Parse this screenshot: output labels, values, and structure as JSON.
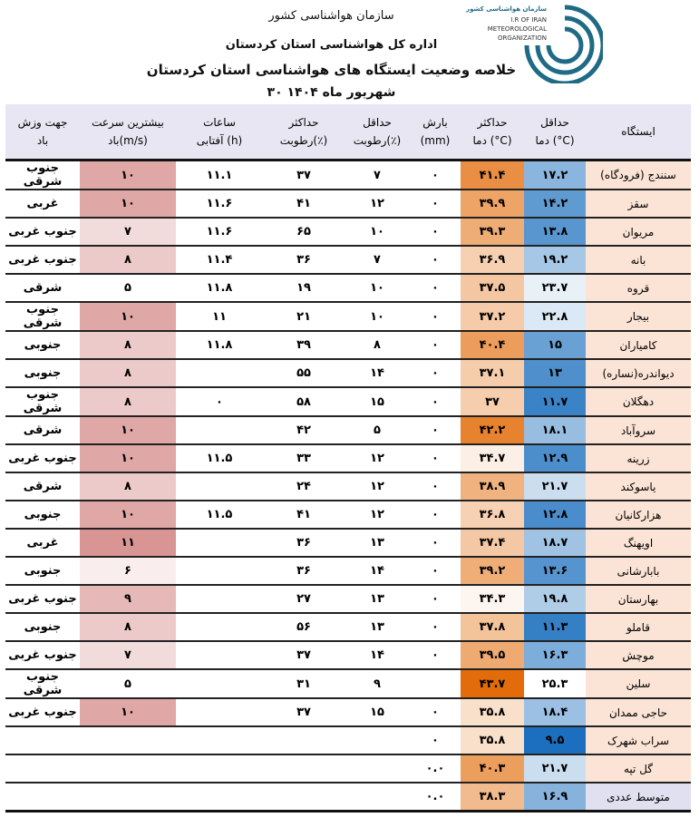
{
  "header": {
    "org": "سازمان هواشناسی کشور",
    "office": "اداره کل هواشناسی استان کردستان",
    "title": "خلاصه وضعیت ایستگاه های هواشناسی استان کردستان",
    "date": "۳۰ شهریور ماه ۱۴۰۴",
    "logo_text": [
      "سازمان هواشناسی کشور",
      "I.R OF IRAN",
      "METEOROLOGICAL",
      "ORGANIZATION"
    ]
  },
  "colors": {
    "logo": "#1f6a85",
    "header_bg": "#e8e6f2",
    "station_bg": "#fbe4d5",
    "hot": "#e36c0a",
    "cold": "#1b6fbe",
    "wind": "#d99594"
  },
  "columns": [
    {
      "l1": "جهت وزش",
      "l2": "باد"
    },
    {
      "l1": "بیشترین سرعت",
      "l2": "باد(m/s)"
    },
    {
      "l1": "ساعات",
      "l2": "آفتابی (h)"
    },
    {
      "l1": "حداکثر",
      "l2": "رطوبت(٪)"
    },
    {
      "l1": "حداقل",
      "l2": "رطوبت(٪)"
    },
    {
      "l1": "بارش",
      "l2": "(mm)"
    },
    {
      "l1": "حداکثر",
      "l2": "دما (°C)"
    },
    {
      "l1": "حداقل",
      "l2": "دما (°C)"
    },
    {
      "l1": "ایستگاه",
      "l2": ""
    }
  ],
  "rows": [
    {
      "station": "سنندج (فرودگاه)",
      "tmin": "۱۷.۲",
      "tmax": "۴۱.۴",
      "precip": "۰",
      "rhmin": "۷",
      "rhmax": "۳۷",
      "sun": "۱۱.۱",
      "wind": "۱۰",
      "dir": "جنوب شرقی",
      "v": [
        17.2,
        41.4,
        10
      ]
    },
    {
      "station": "سقز",
      "tmin": "۱۴.۲",
      "tmax": "۳۹.۹",
      "precip": "۰",
      "rhmin": "۱۲",
      "rhmax": "۴۱",
      "sun": "۱۱.۶",
      "wind": "۱۰",
      "dir": "غربی",
      "v": [
        14.2,
        39.9,
        10
      ]
    },
    {
      "station": "مریوان",
      "tmin": "۱۳.۸",
      "tmax": "۳۹.۳",
      "precip": "۰",
      "rhmin": "۱۰",
      "rhmax": "۶۵",
      "sun": "۱۱.۶",
      "wind": "۷",
      "dir": "جنوب غربی",
      "v": [
        13.8,
        39.3,
        7
      ]
    },
    {
      "station": "بانه",
      "tmin": "۱۹.۲",
      "tmax": "۳۶.۹",
      "precip": "۰",
      "rhmin": "۷",
      "rhmax": "۳۶",
      "sun": "۱۱.۴",
      "wind": "۸",
      "dir": "جنوب غربی",
      "v": [
        19.2,
        36.9,
        8
      ]
    },
    {
      "station": "قروه",
      "tmin": "۲۳.۷",
      "tmax": "۳۷.۵",
      "precip": "۰",
      "rhmin": "۱۰",
      "rhmax": "۱۹",
      "sun": "۱۱.۸",
      "wind": "۵",
      "dir": "شرقی",
      "v": [
        23.7,
        37.5,
        5
      ]
    },
    {
      "station": "بیجار",
      "tmin": "۲۲.۸",
      "tmax": "۳۷.۲",
      "precip": "۰",
      "rhmin": "۱۰",
      "rhmax": "۲۱",
      "sun": "۱۱",
      "wind": "۱۰",
      "dir": "جنوب شرقی",
      "v": [
        22.8,
        37.2,
        10
      ]
    },
    {
      "station": "کامیاران",
      "tmin": "۱۵",
      "tmax": "۴۰.۴",
      "precip": "۰",
      "rhmin": "۸",
      "rhmax": "۳۹",
      "sun": "۱۱.۸",
      "wind": "۸",
      "dir": "جنوبی",
      "v": [
        15,
        40.4,
        8
      ]
    },
    {
      "station": "دیواندره(نساره)",
      "tmin": "۱۳",
      "tmax": "۳۷.۱",
      "precip": "۰",
      "rhmin": "۱۴",
      "rhmax": "۵۵",
      "sun": "",
      "wind": "۸",
      "dir": "جنوبی",
      "v": [
        13,
        37.1,
        8
      ]
    },
    {
      "station": "دهگلان",
      "tmin": "۱۱.۷",
      "tmax": "۳۷",
      "precip": "۰",
      "rhmin": "۱۵",
      "rhmax": "۵۸",
      "sun": "۰",
      "wind": "۸",
      "dir": "جنوب شرقی",
      "v": [
        11.7,
        37,
        8
      ]
    },
    {
      "station": "سروآباد",
      "tmin": "۱۸.۱",
      "tmax": "۴۲.۲",
      "precip": "۰",
      "rhmin": "۵",
      "rhmax": "۴۲",
      "sun": "",
      "wind": "۱۰",
      "dir": "شرقی",
      "v": [
        18.1,
        42.2,
        10
      ]
    },
    {
      "station": "زرینه",
      "tmin": "۱۲.۹",
      "tmax": "۳۴.۷",
      "precip": "۰",
      "rhmin": "۱۲",
      "rhmax": "۳۳",
      "sun": "۱۱.۵",
      "wind": "۱۰",
      "dir": "جنوب غربی",
      "v": [
        12.9,
        34.7,
        10
      ]
    },
    {
      "station": "یاسوکند",
      "tmin": "۲۱.۷",
      "tmax": "۳۸.۹",
      "precip": "۰",
      "rhmin": "۱۲",
      "rhmax": "۲۴",
      "sun": "",
      "wind": "۸",
      "dir": "شرقی",
      "v": [
        21.7,
        38.9,
        8
      ]
    },
    {
      "station": "هزارکانیان",
      "tmin": "۱۲.۸",
      "tmax": "۳۶.۸",
      "precip": "۰",
      "rhmin": "۱۲",
      "rhmax": "۴۱",
      "sun": "۱۱.۵",
      "wind": "۱۰",
      "dir": "جنوبی",
      "v": [
        12.8,
        36.8,
        10
      ]
    },
    {
      "station": "اویهنگ",
      "tmin": "۱۸.۷",
      "tmax": "۳۷.۴",
      "precip": "۰",
      "rhmin": "۱۳",
      "rhmax": "۳۶",
      "sun": "",
      "wind": "۱۱",
      "dir": "غربی",
      "v": [
        18.7,
        37.4,
        11
      ]
    },
    {
      "station": "بابارشانی",
      "tmin": "۱۳.۶",
      "tmax": "۳۹.۲",
      "precip": "۰",
      "rhmin": "۱۴",
      "rhmax": "۳۶",
      "sun": "",
      "wind": "۶",
      "dir": "جنوبی",
      "v": [
        13.6,
        39.2,
        6
      ]
    },
    {
      "station": "بهارستان",
      "tmin": "۱۹.۸",
      "tmax": "۳۴.۳",
      "precip": "۰",
      "rhmin": "۱۳",
      "rhmax": "۲۷",
      "sun": "",
      "wind": "۹",
      "dir": "جنوب غربی",
      "v": [
        19.8,
        34.3,
        9
      ]
    },
    {
      "station": "قاملو",
      "tmin": "۱۱.۳",
      "tmax": "۳۷.۸",
      "precip": "۰",
      "rhmin": "۱۳",
      "rhmax": "۵۶",
      "sun": "",
      "wind": "۸",
      "dir": "جنوبی",
      "v": [
        11.3,
        37.8,
        8
      ]
    },
    {
      "station": "موچش",
      "tmin": "۱۶.۳",
      "tmax": "۳۹.۵",
      "precip": "۰",
      "rhmin": "۱۴",
      "rhmax": "۳۷",
      "sun": "",
      "wind": "۷",
      "dir": "جنوب غربی",
      "v": [
        16.3,
        39.5,
        7
      ]
    },
    {
      "station": "سلین",
      "tmin": "۲۵.۳",
      "tmax": "۴۳.۷",
      "precip": "",
      "rhmin": "۹",
      "rhmax": "۳۱",
      "sun": "",
      "wind": "۵",
      "dir": "جنوب شرقی",
      "v": [
        25.3,
        43.7,
        5
      ]
    },
    {
      "station": "حاجی ممدان",
      "tmin": "۱۸.۴",
      "tmax": "۳۵.۸",
      "precip": "۰",
      "rhmin": "۱۵",
      "rhmax": "۳۷",
      "sun": "",
      "wind": "۱۰",
      "dir": "جنوب غربی",
      "v": [
        18.4,
        35.8,
        10
      ]
    },
    {
      "station": "سراب شهرک",
      "tmin": "۹.۵",
      "tmax": "۳۵.۸",
      "precip": "۰",
      "rhmin": "",
      "rhmax": "",
      "sun": "",
      "wind": "",
      "dir": "",
      "v": [
        9.5,
        35.8,
        null
      ]
    },
    {
      "station": "گل تپه",
      "tmin": "۲۱.۷",
      "tmax": "۴۰.۳",
      "precip": "۰.۰",
      "rhmin": "",
      "rhmax": "",
      "sun": "",
      "wind": "",
      "dir": "",
      "v": [
        21.7,
        40.3,
        null
      ]
    },
    {
      "station": "متوسط عددی",
      "tmin": "۱۶.۹",
      "tmax": "۳۸.۳",
      "precip": "۰.۰",
      "rhmin": "",
      "rhmax": "",
      "sun": "",
      "wind": "",
      "dir": "",
      "v": [
        16.9,
        38.3,
        null
      ]
    }
  ]
}
